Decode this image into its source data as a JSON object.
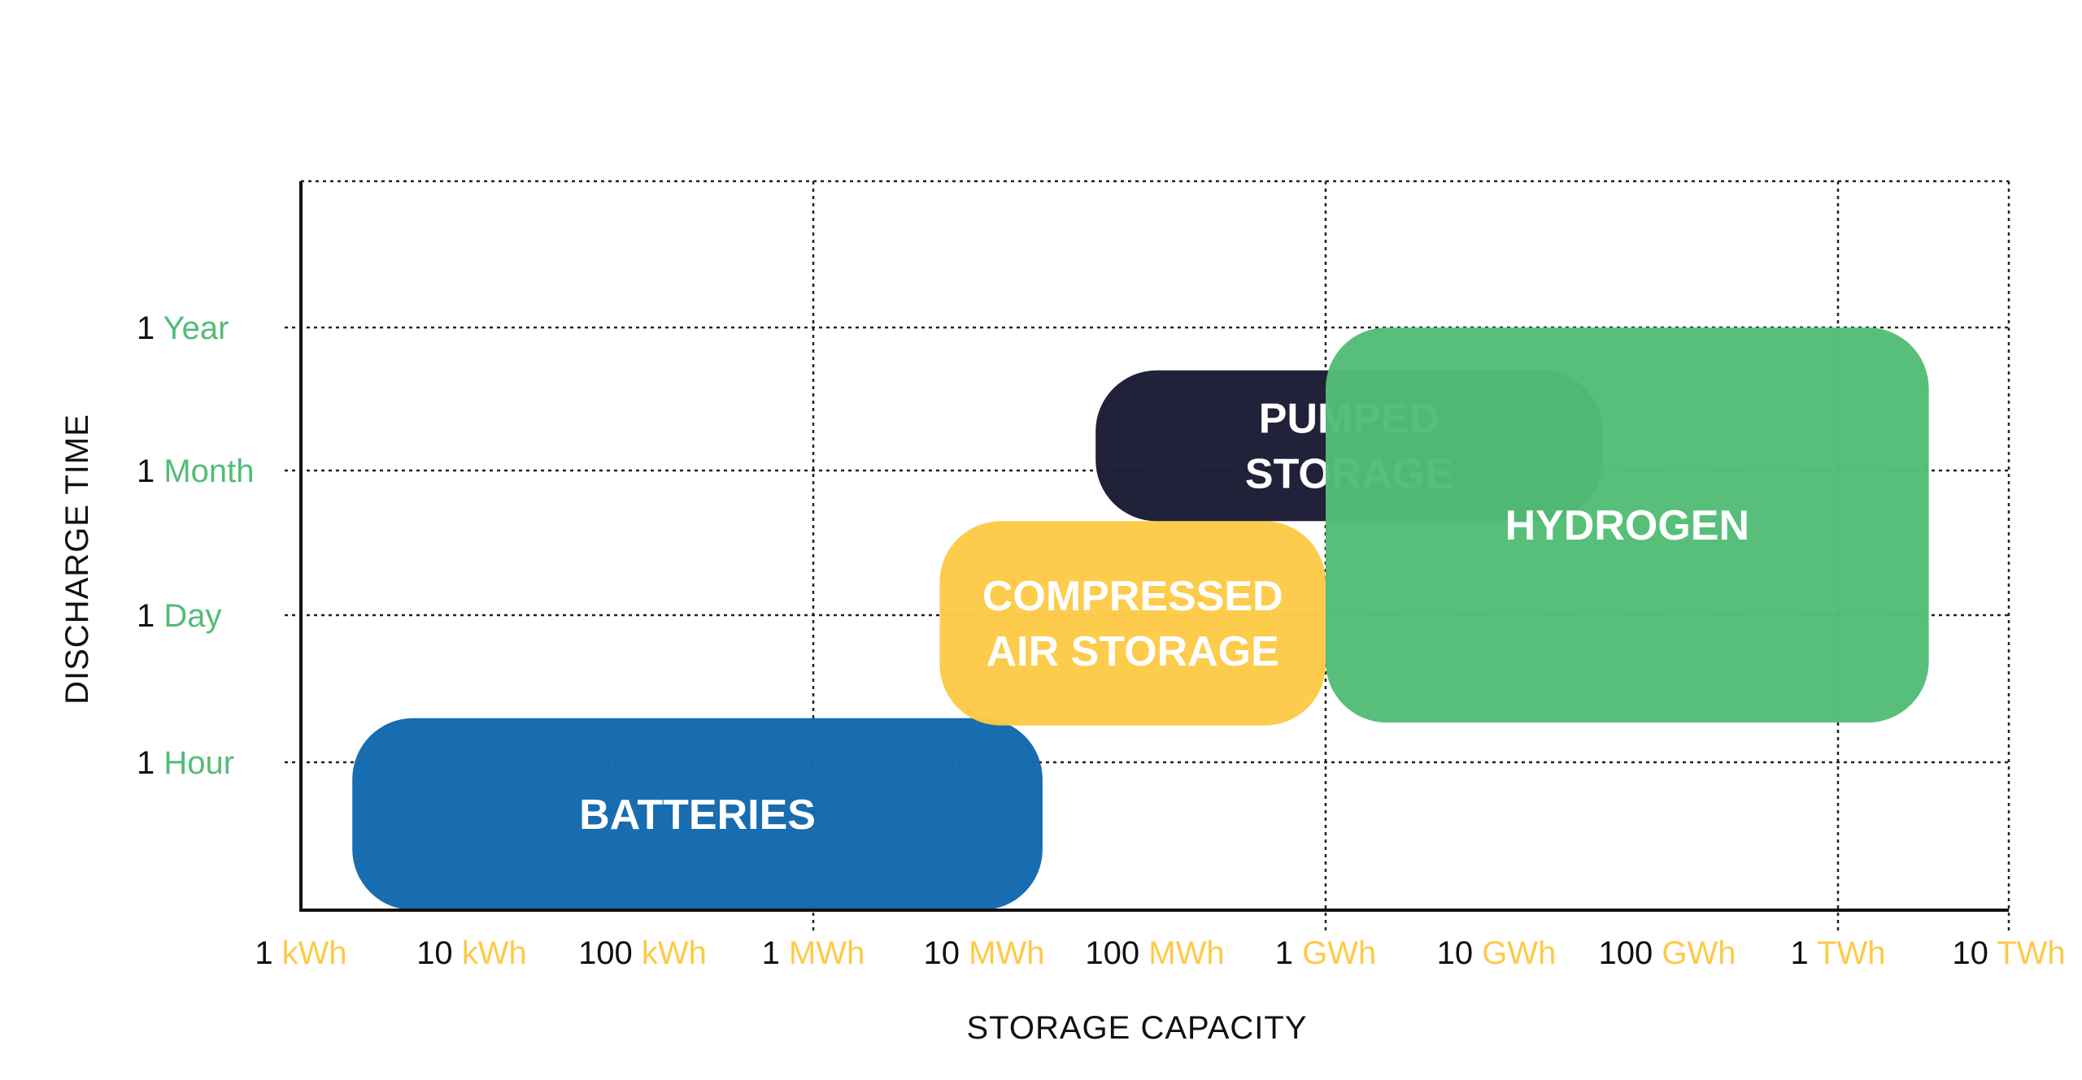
{
  "chart_data": {
    "type": "range-box",
    "xlabel": "STORAGE CAPACITY",
    "ylabel": "DISCHARGE TIME",
    "x_scale": "log10",
    "x_ticks": [
      {
        "value": 1,
        "num": "1",
        "unit": "kWh"
      },
      {
        "value": 10,
        "num": "10",
        "unit": "kWh"
      },
      {
        "value": 100,
        "num": "100",
        "unit": "kWh"
      },
      {
        "value": 1000,
        "num": "1",
        "unit": "MWh"
      },
      {
        "value": 10000,
        "num": "10",
        "unit": "MWh"
      },
      {
        "value": 100000,
        "num": "100",
        "unit": "MWh"
      },
      {
        "value": 1000000,
        "num": "1",
        "unit": "GWh"
      },
      {
        "value": 10000000,
        "num": "10",
        "unit": "GWh"
      },
      {
        "value": 100000000,
        "num": "100",
        "unit": "GWh"
      },
      {
        "value": 1000000000,
        "num": "1",
        "unit": "TWh"
      },
      {
        "value": 10000000000,
        "num": "10",
        "unit": "TWh"
      }
    ],
    "x_gridlines_kwh": [
      1,
      1000,
      1000000,
      1000000000,
      10000000000
    ],
    "y_ticks": [
      {
        "level": 1,
        "num": "1",
        "unit": "Hour"
      },
      {
        "level": 2,
        "num": "1",
        "unit": "Day"
      },
      {
        "level": 3,
        "num": "1",
        "unit": "Month"
      },
      {
        "level": 4,
        "num": "1",
        "unit": "Year"
      }
    ],
    "y_range": [
      0,
      5
    ],
    "grid": true,
    "technologies": [
      {
        "name": "BATTERIES",
        "lines": [
          "BATTERIES"
        ],
        "x_min_kwh": 2,
        "x_max_kwh": 22000,
        "y_min": 0,
        "y_max": 1.3,
        "color": "#1167AD"
      },
      {
        "name": "COMPRESSED AIR STORAGE",
        "lines": [
          "COMPRESSED",
          "AIR STORAGE"
        ],
        "x_min_kwh": 5500,
        "x_max_kwh": 1000000,
        "y_min": 1.25,
        "y_max": 2.65,
        "color": "#FDCA47"
      },
      {
        "name": "PUMPED STORAGE",
        "lines": [
          "PUMPED",
          "STORAGE"
        ],
        "x_min_kwh": 45000,
        "x_max_kwh": 42000000,
        "y_min": 2.65,
        "y_max": 3.7,
        "color": "#1A1B33"
      },
      {
        "name": "HYDROGEN",
        "lines": [
          "HYDROGEN"
        ],
        "x_min_kwh": 1000000,
        "x_max_kwh": 3400000000,
        "y_min": 1.27,
        "y_max": 4.0,
        "color": "#52BD76"
      }
    ],
    "colors": {
      "x_unit": "#FDCA47",
      "y_unit": "#52BD76",
      "grid": "#222222",
      "axis": "#111111"
    }
  }
}
